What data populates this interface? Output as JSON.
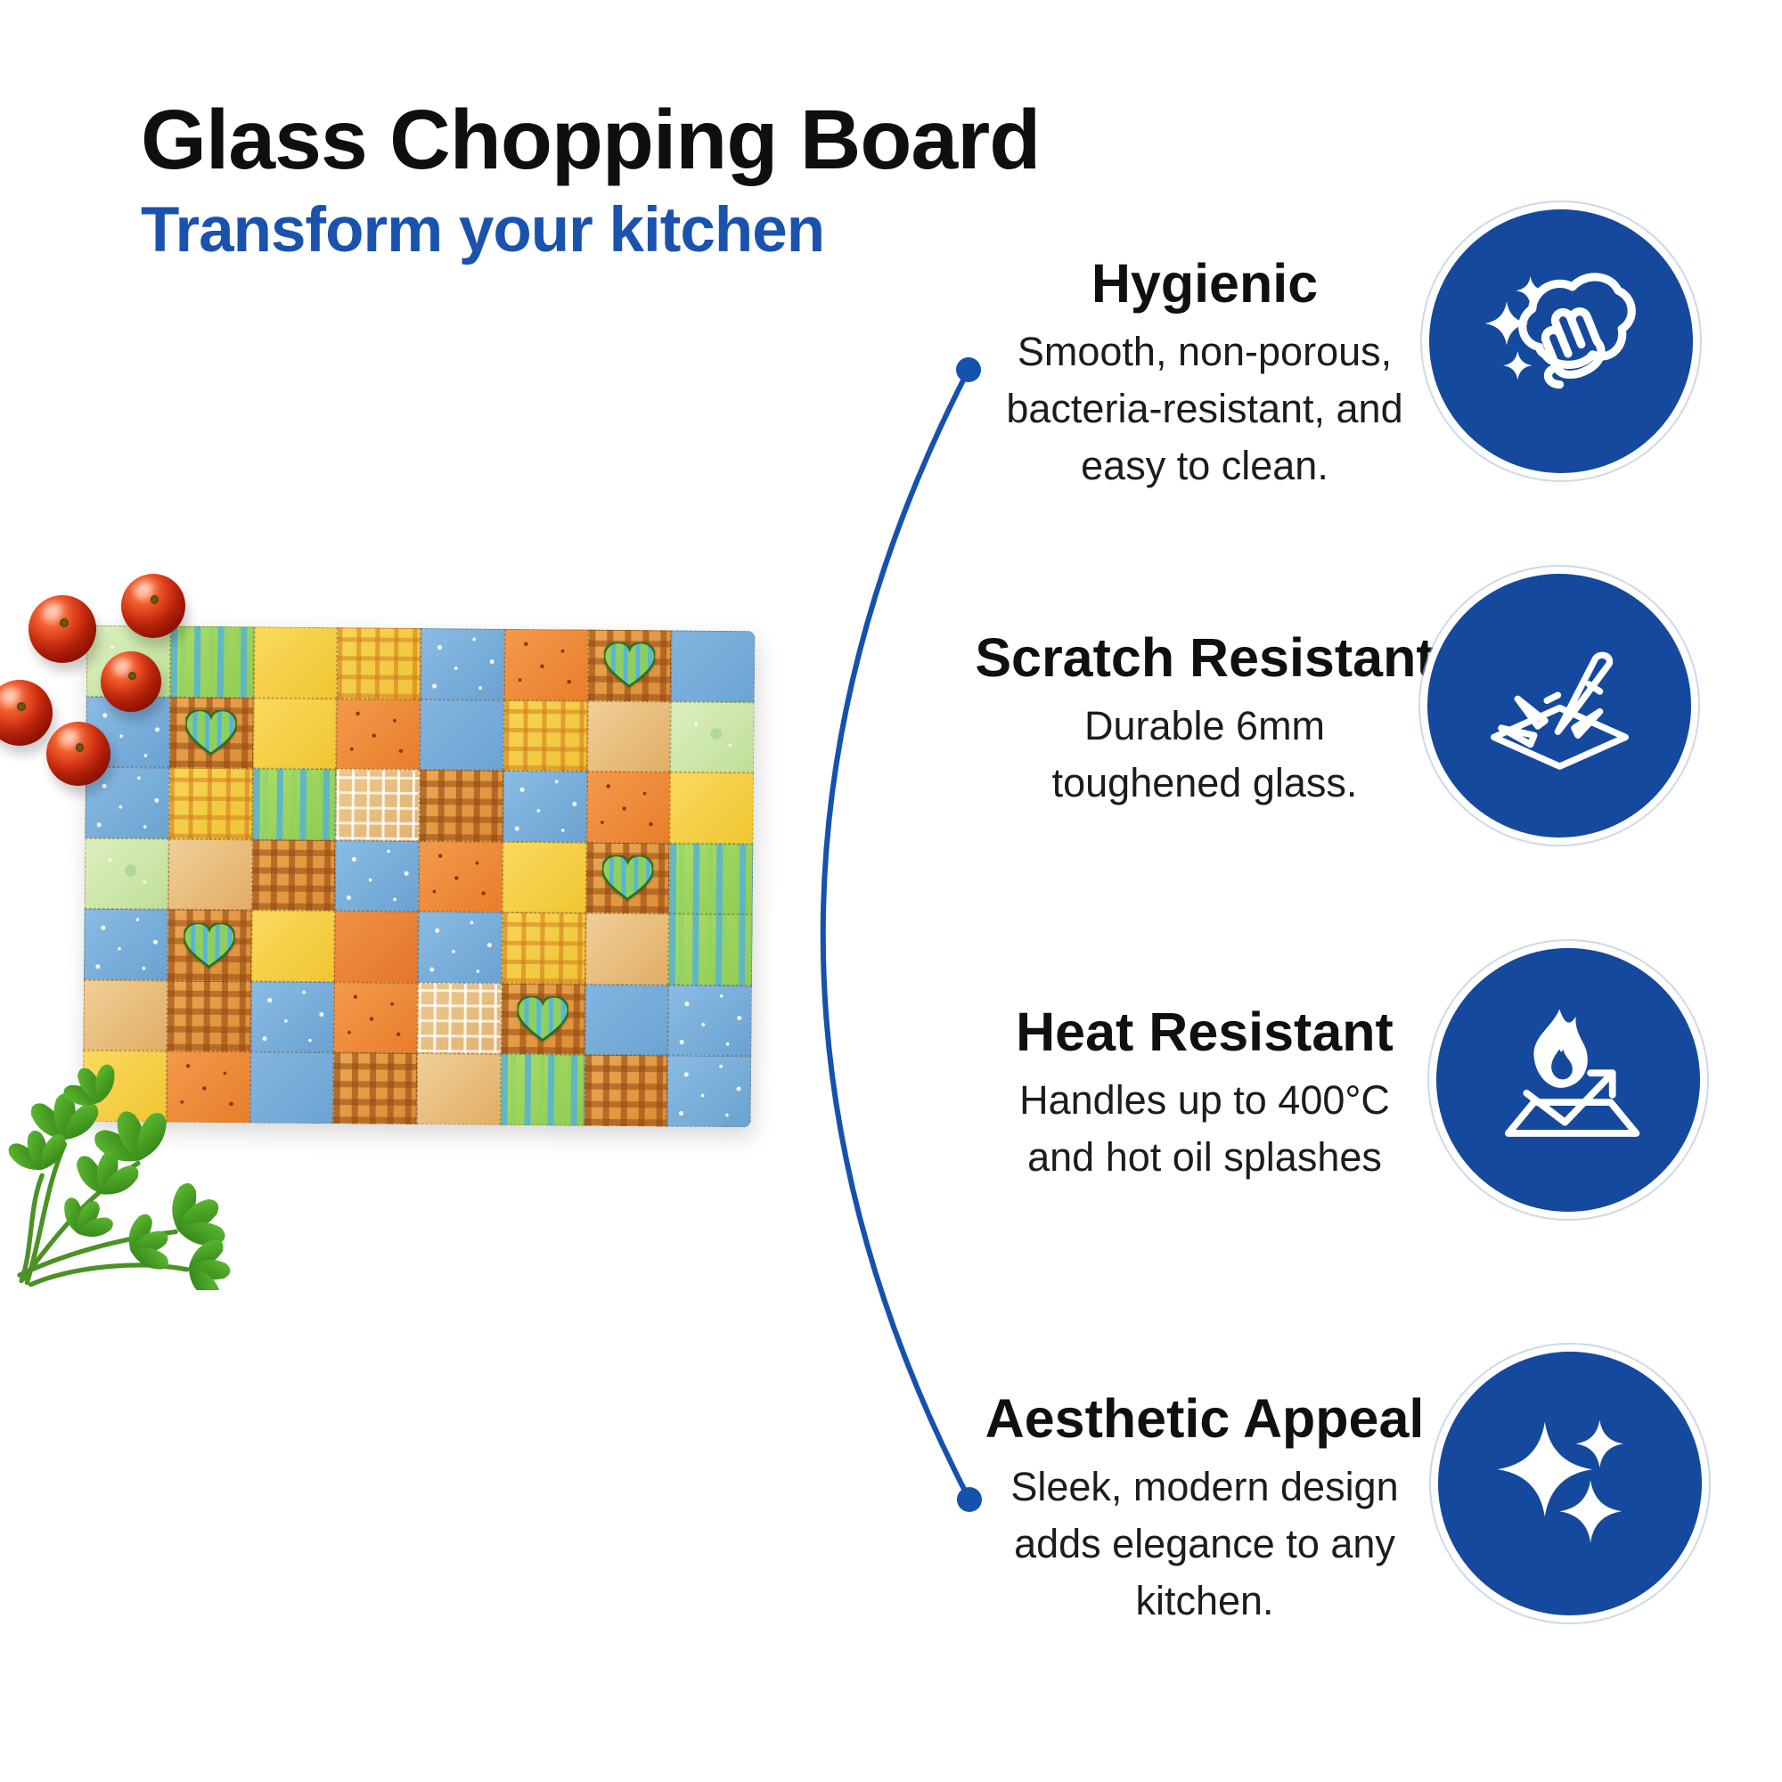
{
  "header": {
    "title": "Glass Chopping Board",
    "subtitle": "Transform your kitchen"
  },
  "features": [
    {
      "id": "hygienic",
      "title": "Hygienic",
      "body": "Smooth, non-porous,\nbacteria-resistant, and\neasy to clean.",
      "icon": "wiping-hand-sparkles"
    },
    {
      "id": "scratch-resistant",
      "title": "Scratch Resistant",
      "body": "Durable 6mm\ntoughened glass.",
      "icon": "knife-on-surface"
    },
    {
      "id": "heat-resistant",
      "title": "Heat Resistant",
      "body": "Handles up to 400°C\nand hot oil splashes",
      "icon": "flame-over-surface"
    },
    {
      "id": "aesthetic-appeal",
      "title": "Aesthetic Appeal",
      "body": "Sleek, modern design\nadds elegance to any\nkitchen.",
      "icon": "sparkles"
    }
  ],
  "colors": {
    "heading_black": "#0f0f0f",
    "accent_blue": "#1a52ad",
    "icon_circle_blue": "#14499d",
    "connector_blue": "#1552ae",
    "body_text": "#1c1c1c"
  },
  "board": {
    "description": "watercolor patchwork glass chopping board with cherry tomatoes and parsley",
    "grid": [
      [
        "lg",
        "gs",
        "yl",
        "yp",
        "bd",
        "od",
        "hp",
        "bl"
      ],
      [
        "bd",
        "hp",
        "yl",
        "od",
        "bl",
        "yp",
        "tn",
        "lg"
      ],
      [
        "bd",
        "yp",
        "gs",
        "wp",
        "op",
        "bd",
        "od",
        "yl"
      ],
      [
        "lg",
        "tn",
        "op",
        "bd",
        "od",
        "yl",
        "hp",
        "gs"
      ],
      [
        "bd",
        "hp",
        "yl",
        "or",
        "bd",
        "yp",
        "tn",
        "gs"
      ],
      [
        "tn",
        "op",
        "bd",
        "od",
        "wp",
        "hp",
        "bl",
        "bd"
      ],
      [
        "yl",
        "od",
        "bl",
        "op",
        "tn",
        "gs",
        "op",
        "bd"
      ]
    ],
    "palette": {
      "blue": "#7bb0dc",
      "orange": "#ee8a3e",
      "yellow": "#f6d14e",
      "tan": "#eecb92",
      "green": "#a6d964",
      "light_green": "#d6ecba"
    }
  },
  "decorations": {
    "produce": [
      "cherry-tomatoes",
      "parsley"
    ]
  }
}
